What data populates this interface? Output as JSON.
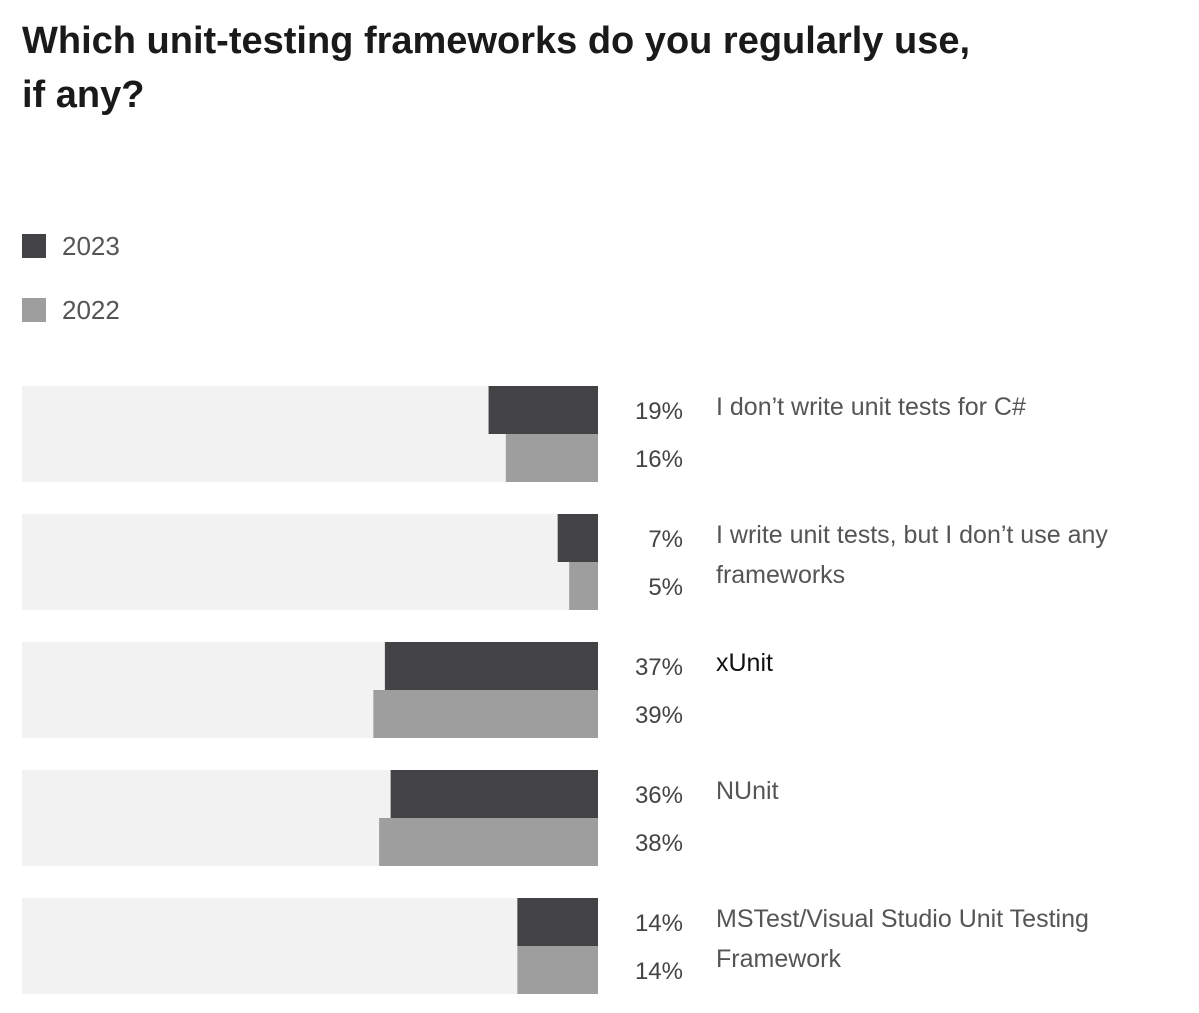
{
  "chart_data": {
    "type": "bar",
    "orientation": "horizontal",
    "title": "Which unit-testing frameworks do you regularly use, if any?",
    "categories": [
      "I don’t write unit tests for C#",
      "I write unit tests, but I don’t use any frameworks",
      "xUnit",
      "NUnit",
      "MSTest/Visual Studio Unit Testing Framework"
    ],
    "series": [
      {
        "name": "2023",
        "values": [
          19,
          7,
          37,
          36,
          14
        ],
        "labels": [
          "19%",
          "7%",
          "37%",
          "36%",
          "14%"
        ],
        "color": "#434345"
      },
      {
        "name": "2022",
        "values": [
          16,
          5,
          39,
          38,
          14
        ],
        "labels": [
          "16%",
          "5%",
          "39%",
          "38%",
          "14%"
        ],
        "color": "#9e9e9e"
      }
    ],
    "xlim": [
      0,
      100
    ],
    "track_color": "#f2f2f2",
    "highlight_category": "xUnit",
    "legend_position": "top-left"
  }
}
